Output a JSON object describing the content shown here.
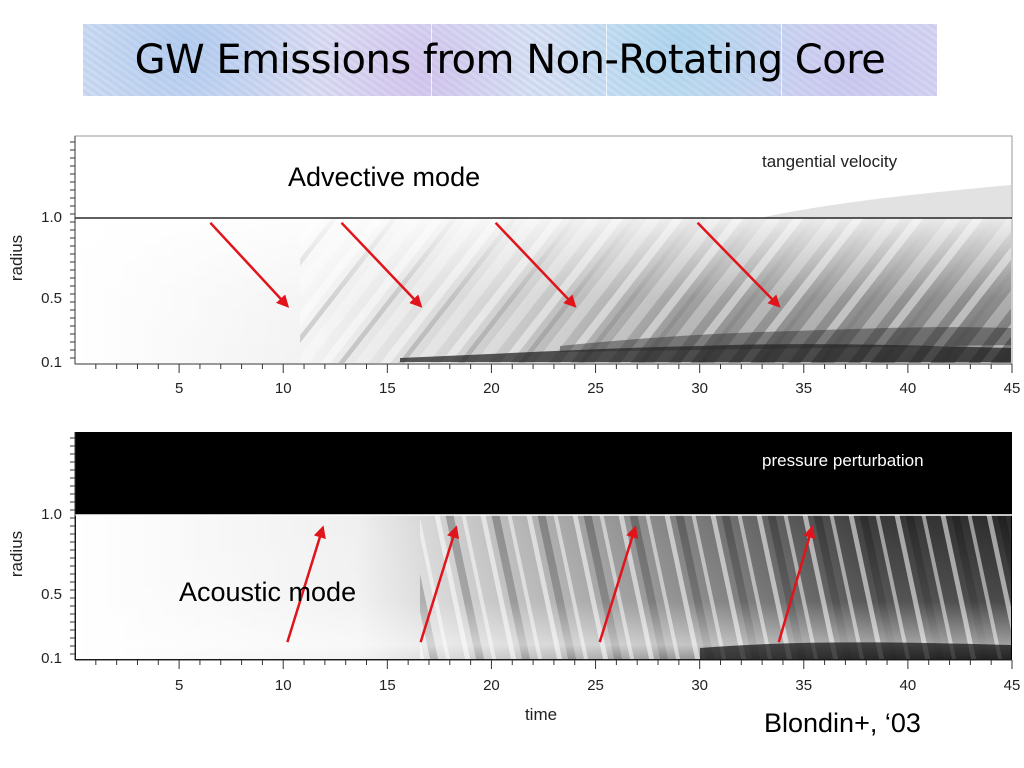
{
  "slide": {
    "title": "GW Emissions from Non-Rotating Core",
    "citation": "Blondin+, ‘03"
  },
  "panels": [
    {
      "id": "top",
      "inner_label": "tangential velocity",
      "annotation": "Advective mode",
      "ylabel": "radius",
      "y_ticks": [
        "1.0",
        "0.5",
        "0.1"
      ],
      "x_ticks": [
        "5",
        "10",
        "15",
        "20",
        "25",
        "30",
        "35",
        "40",
        "45"
      ],
      "arrows": [
        {
          "from_time": 6.5,
          "from_radius": 0.97,
          "to_time": 10.2,
          "to_radius": 0.45
        },
        {
          "from_time": 12.8,
          "from_radius": 0.97,
          "to_time": 16.6,
          "to_radius": 0.45
        },
        {
          "from_time": 20.2,
          "from_radius": 0.97,
          "to_time": 24.0,
          "to_radius": 0.45
        },
        {
          "from_time": 29.9,
          "from_radius": 0.97,
          "to_time": 33.8,
          "to_radius": 0.45
        }
      ]
    },
    {
      "id": "bottom",
      "inner_label": "pressure perturbation",
      "annotation": "Acoustic mode",
      "ylabel": "radius",
      "xlabel": "time",
      "y_ticks": [
        "1.0",
        "0.5",
        "0.1"
      ],
      "x_ticks": [
        "5",
        "10",
        "15",
        "20",
        "25",
        "30",
        "35",
        "40",
        "45"
      ],
      "arrows": [
        {
          "from_time": 10.2,
          "from_radius": 0.2,
          "to_time": 11.9,
          "to_radius": 0.92
        },
        {
          "from_time": 16.6,
          "from_radius": 0.2,
          "to_time": 18.3,
          "to_radius": 0.92
        },
        {
          "from_time": 25.2,
          "from_radius": 0.2,
          "to_time": 26.9,
          "to_radius": 0.92
        },
        {
          "from_time": 33.8,
          "from_radius": 0.2,
          "to_time": 35.4,
          "to_radius": 0.92
        }
      ]
    }
  ],
  "colors": {
    "arrow": "#e0141a",
    "axis": "#333333"
  }
}
